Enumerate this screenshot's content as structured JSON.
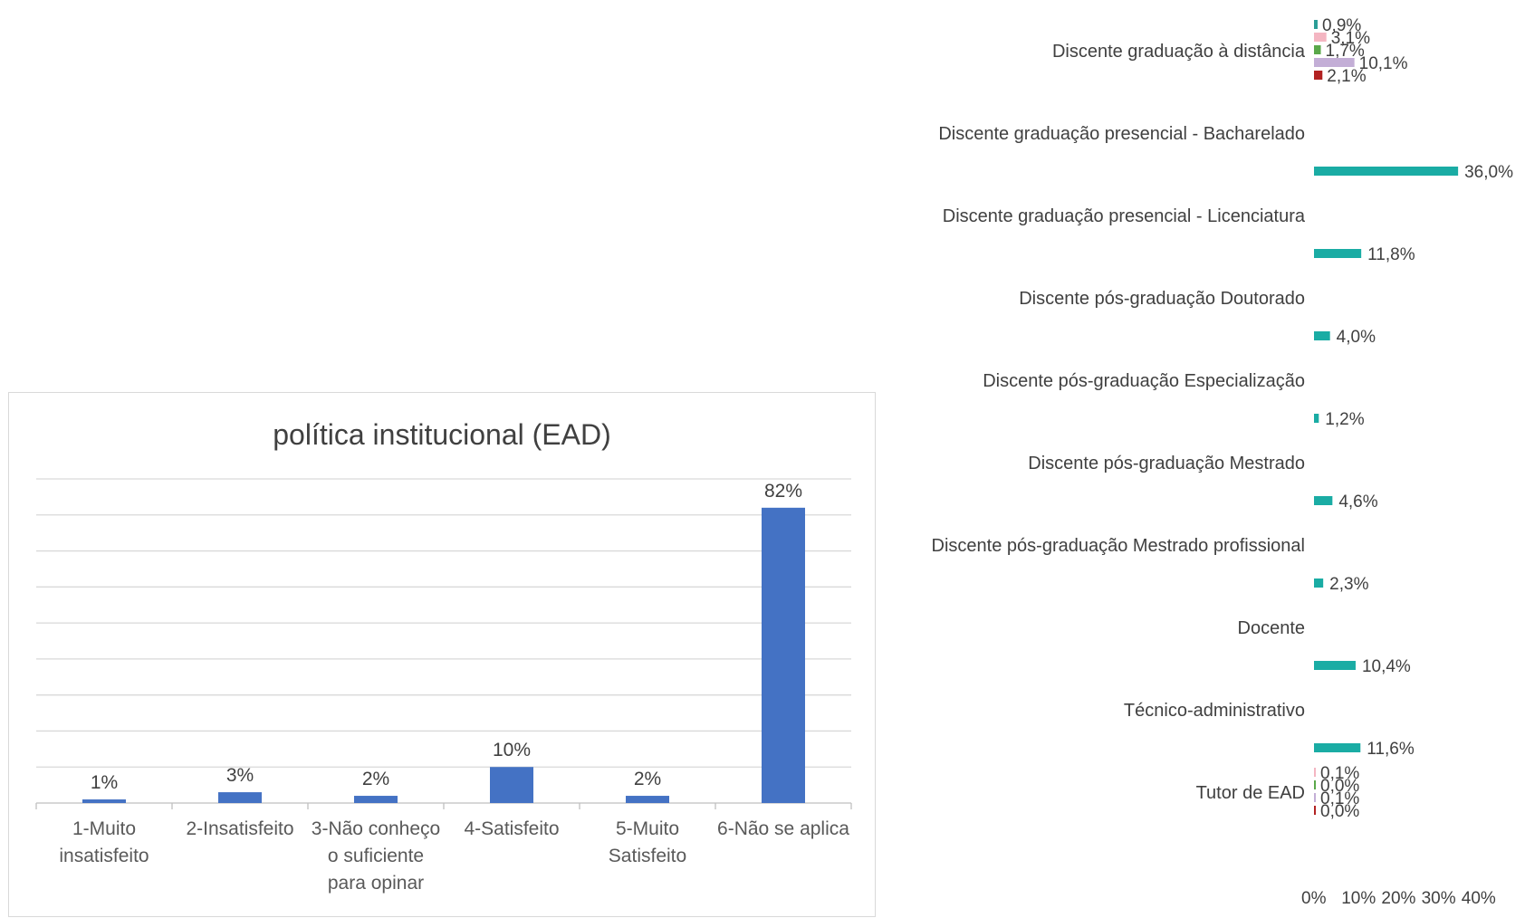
{
  "chart_data": [
    {
      "type": "bar",
      "orientation": "horizontal",
      "title": "",
      "xlabel": "",
      "ylabel": "",
      "grid": false,
      "legend": "none",
      "x_ticks": [
        "0%",
        "10%",
        "20%",
        "30%",
        "40%"
      ],
      "xlim": [
        0,
        40
      ],
      "groups": [
        {
          "label": "Discente graduação à distância",
          "bars": [
            {
              "value": 0.9,
              "label": "0,9%",
              "color": "#2a9d96"
            },
            {
              "value": 3.1,
              "label": "3,1%",
              "color": "#f4b6c2"
            },
            {
              "value": 1.7,
              "label": "1,7%",
              "color": "#5aa84a"
            },
            {
              "value": 10.1,
              "label": "10,1%",
              "color": "#c3aed6"
            },
            {
              "value": 2.1,
              "label": "2,1%",
              "color": "#b22222"
            }
          ]
        },
        {
          "label": "Discente graduação presencial - Bacharelado",
          "bars": [
            {
              "value": 36.0,
              "label": "36,0%",
              "color": "#1aaca4"
            }
          ]
        },
        {
          "label": "Discente graduação presencial - Licenciatura",
          "bars": [
            {
              "value": 11.8,
              "label": "11,8%",
              "color": "#1aaca4"
            }
          ]
        },
        {
          "label": "Discente pós-graduação Doutorado",
          "bars": [
            {
              "value": 4.0,
              "label": "4,0%",
              "color": "#1aaca4"
            }
          ]
        },
        {
          "label": "Discente pós-graduação Especialização",
          "bars": [
            {
              "value": 1.2,
              "label": "1,2%",
              "color": "#1aaca4"
            }
          ]
        },
        {
          "label": "Discente pós-graduação Mestrado",
          "bars": [
            {
              "value": 4.6,
              "label": "4,6%",
              "color": "#1aaca4"
            }
          ]
        },
        {
          "label": "Discente pós-graduação Mestrado profissional",
          "bars": [
            {
              "value": 2.3,
              "label": "2,3%",
              "color": "#1aaca4"
            }
          ]
        },
        {
          "label": "Docente",
          "bars": [
            {
              "value": 10.4,
              "label": "10,4%",
              "color": "#1aaca4"
            }
          ]
        },
        {
          "label": "Técnico-administrativo",
          "bars": [
            {
              "value": 11.6,
              "label": "11,6%",
              "color": "#1aaca4"
            }
          ]
        },
        {
          "label": "Tutor de EAD",
          "bars": [
            {
              "value": 0.1,
              "label": "0,1%",
              "color": "#f4b6c2"
            },
            {
              "value": 0.0,
              "label": "0,0%",
              "color": "#5aa84a"
            },
            {
              "value": 0.1,
              "label": "0,1%",
              "color": "#c3aed6"
            },
            {
              "value": 0.0,
              "label": "0,0%",
              "color": "#b22222"
            }
          ]
        }
      ]
    },
    {
      "type": "bar",
      "title": "política institucional (EAD)",
      "xlabel": "",
      "ylabel": "",
      "grid": true,
      "legend": "none",
      "ylim": [
        0,
        90
      ],
      "categories": [
        [
          "1-Muito",
          "insatisfeito"
        ],
        [
          "2-Insatisfeito"
        ],
        [
          "3-Não conheço",
          "o suficiente",
          "para opinar"
        ],
        [
          "4-Satisfeito"
        ],
        [
          "5-Muito",
          "Satisfeito"
        ],
        [
          "6-Não se aplica"
        ]
      ],
      "values": [
        1,
        3,
        2,
        10,
        2,
        82
      ],
      "data_labels": [
        "1%",
        "3%",
        "2%",
        "10%",
        "2%",
        "82%"
      ],
      "bar_color": "#4472c4"
    }
  ]
}
